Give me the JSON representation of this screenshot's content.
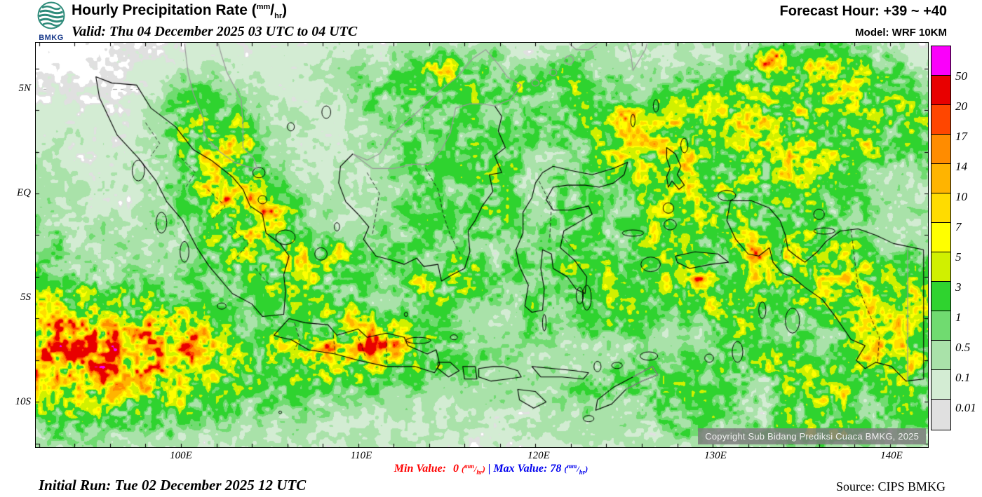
{
  "header": {
    "logo_text": "BMKG",
    "title_main": "Hourly Precipitation Rate",
    "valid_line": "Valid: Thu 04 December 2025 03 UTC to 04 UTC",
    "forecast_hour_label": "Forecast Hour:",
    "forecast_hour_value": "+39 ~ +40",
    "model_label": "Model:",
    "model_value": "WRF 10KM"
  },
  "units": {
    "open": "(",
    "num": "mm",
    "slash": "/",
    "den": "hr",
    "close": ")"
  },
  "map": {
    "lat_labels": [
      "5N",
      "EQ",
      "5S",
      "10S"
    ],
    "lon_labels": [
      "100E",
      "110E",
      "120E",
      "130E",
      "140E"
    ],
    "copyright": "Copyright Sub Bidang Prediksi Cuaca BMKG, 2025"
  },
  "legend": {
    "title": "precipitation-rate-scale-mm-per-hr",
    "labels": [
      "50",
      "20",
      "17",
      "14",
      "10",
      "7",
      "5",
      "3",
      "1",
      "0.5",
      "0.1",
      "0.01"
    ],
    "colors": [
      "#FA00FA",
      "#E80000",
      "#FF4600",
      "#FF8C00",
      "#FFB400",
      "#FFDC00",
      "#FFFF00",
      "#D0F000",
      "#2FD32F",
      "#70DB70",
      "#A9E2A9",
      "#D3ECD3",
      "#E0E0E0"
    ]
  },
  "stats": {
    "min_label": "Min Value:",
    "min_value": "0",
    "separator": "|",
    "max_label": "Max Value:",
    "max_value": "78",
    "min_color": "#FF0000",
    "max_color": "#0000EE"
  },
  "footer": {
    "initial_run": "Initial Run: Tue 02 December 2025 12 UTC",
    "source": "Source: CIPS BMKG"
  }
}
